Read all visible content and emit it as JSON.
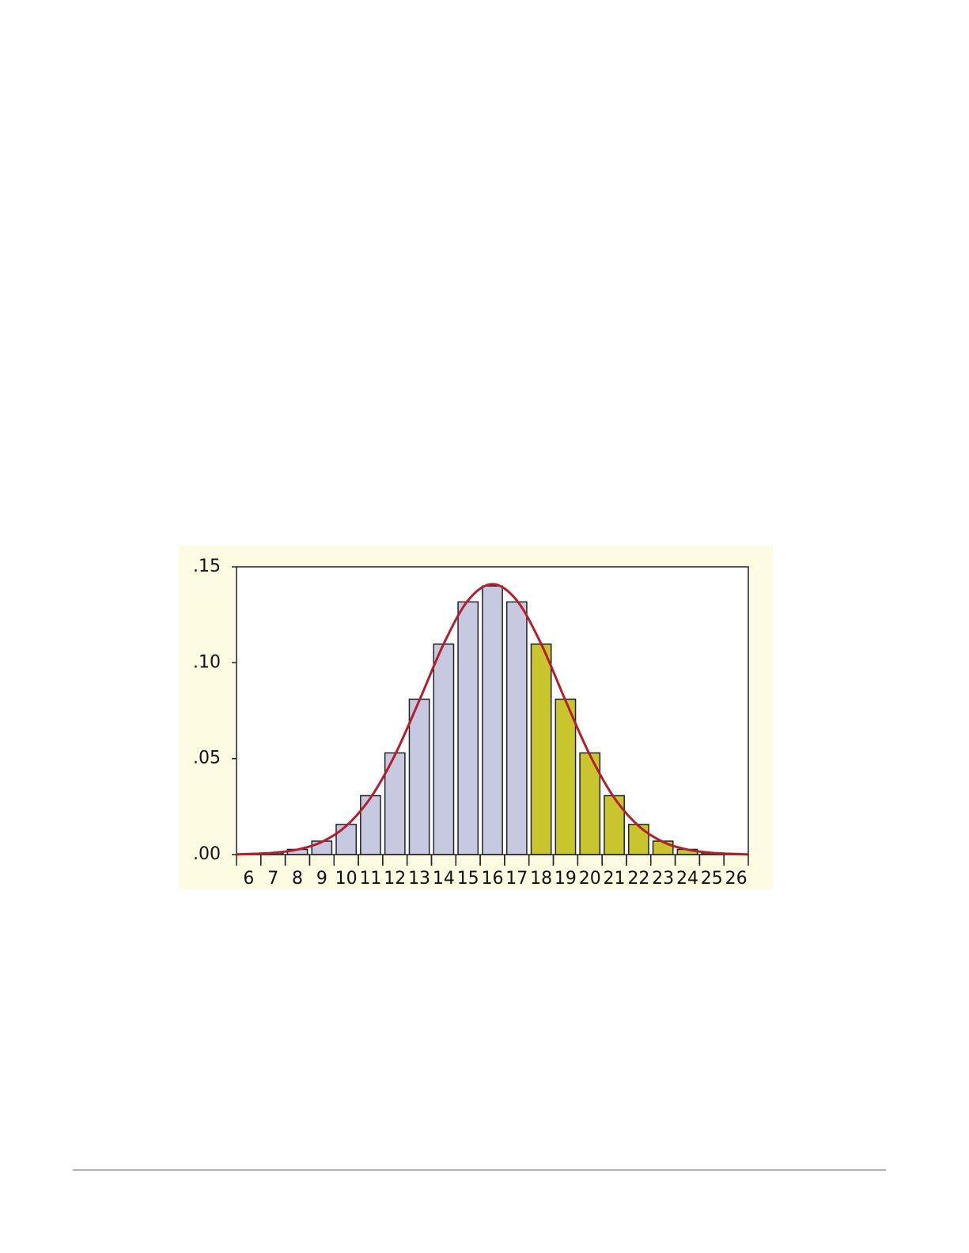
{
  "chart_data": {
    "type": "bar",
    "x": [
      6,
      7,
      8,
      9,
      10,
      11,
      12,
      13,
      14,
      15,
      16,
      17,
      18,
      19,
      20,
      21,
      22,
      23,
      24,
      25,
      26
    ],
    "values": [
      0.0002,
      0.0008,
      0.0027,
      0.007,
      0.0157,
      0.0307,
      0.053,
      0.081,
      0.1097,
      0.1317,
      0.14,
      0.1317,
      0.1097,
      0.081,
      0.053,
      0.0307,
      0.0157,
      0.007,
      0.0027,
      0.0008,
      0.0002
    ],
    "colors": [
      "#c6c9e0",
      "#c6c9e0",
      "#c6c9e0",
      "#c6c9e0",
      "#c6c9e0",
      "#c6c9e0",
      "#c6c9e0",
      "#c6c9e0",
      "#c6c9e0",
      "#c6c9e0",
      "#c6c9e0",
      "#c6c9e0",
      "#c9c52c",
      "#c9c52c",
      "#c9c52c",
      "#c9c52c",
      "#c9c52c",
      "#c9c52c",
      "#c9c52c",
      "#c9c52c",
      "#c9c52c"
    ],
    "curve": {
      "color": "#b3202c",
      "x": [
        5.5,
        6,
        7,
        8,
        9,
        10,
        11,
        12,
        13,
        14,
        15,
        16,
        17,
        18,
        19,
        20,
        21,
        22,
        23,
        24,
        25,
        26,
        26.5
      ],
      "values": [
        0.0001,
        0.0003,
        0.0009,
        0.0026,
        0.0066,
        0.0149,
        0.0296,
        0.0519,
        0.0803,
        0.1098,
        0.1325,
        0.141,
        0.1325,
        0.1098,
        0.0803,
        0.0519,
        0.0296,
        0.0149,
        0.0066,
        0.0026,
        0.0009,
        0.0003,
        0.0001
      ]
    },
    "xlim": [
      5.5,
      26.5
    ],
    "ylim": [
      0,
      0.15
    ],
    "yticks": [
      {
        "value": 0,
        "label": ".00"
      },
      {
        "value": 0.05,
        "label": ".05"
      },
      {
        "value": 0.1,
        "label": ".10"
      },
      {
        "value": 0.15,
        "label": ".15"
      }
    ]
  }
}
